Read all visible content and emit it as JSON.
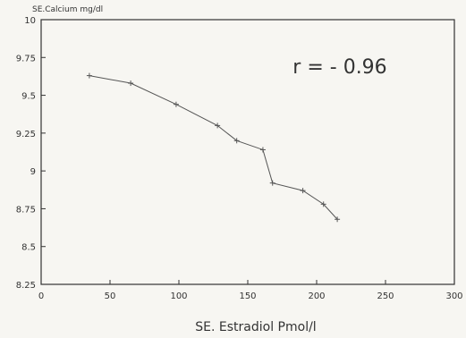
{
  "chart_data": {
    "type": "line",
    "title": "",
    "ylabel": "SE.Calcium mg/dl",
    "xlabel": "SE. Estradiol Pmol/l",
    "annotation": "r = - 0.96",
    "xlim": [
      0,
      300
    ],
    "ylim": [
      8.25,
      10
    ],
    "x_ticks": [
      0,
      50,
      100,
      150,
      200,
      250,
      300
    ],
    "y_ticks": [
      8.25,
      8.5,
      8.75,
      9,
      9.25,
      9.5,
      9.75,
      10
    ],
    "x_tick_labels": [
      "0",
      "50",
      "100",
      "150",
      "200",
      "250",
      "300"
    ],
    "y_tick_labels": [
      "8.25",
      "8.5",
      "8.75",
      "9",
      "9.25",
      "9.5",
      "9.75",
      "10"
    ],
    "grid": false,
    "series": [
      {
        "x": [
          35,
          65,
          98,
          128,
          142,
          161,
          168,
          190,
          205,
          215
        ],
        "y": [
          9.63,
          9.58,
          9.44,
          9.3,
          9.2,
          9.14,
          8.92,
          8.87,
          8.78,
          8.68
        ]
      }
    ],
    "colors": {
      "line": "#555555",
      "axis": "#333333"
    }
  }
}
